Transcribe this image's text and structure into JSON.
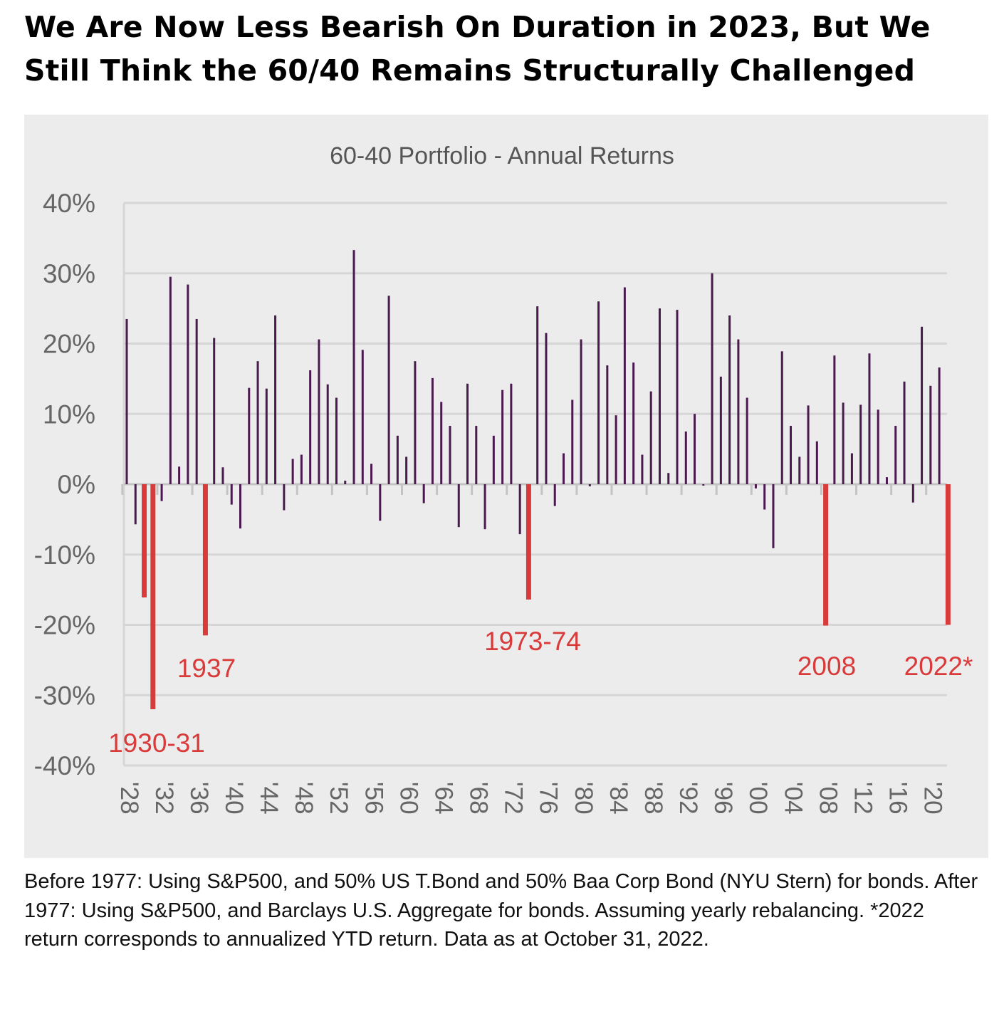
{
  "headline": "We Are Now Less Bearish On Duration in 2023, But We Still Think the 60/40 Remains Structurally Challenged",
  "footnote": "Before 1977: Using S&P500, and 50% US T.Bond and 50% Baa Corp Bond (NYU Stern) for bonds. After 1977: Using S&P500, and Barclays U.S. Aggregate for bonds. Assuming yearly rebalancing. *2022 return corresponds to annualized YTD return. Data as at October 31, 2022.",
  "colors": {
    "bar": "#4a1a4f",
    "highlight": "#d93a3a",
    "panel": "#ececec",
    "grid": "#d6d6d6",
    "tick_text": "#666666"
  },
  "chart_data": {
    "type": "bar",
    "title": "60-40 Portfolio - Annual Returns",
    "xlabel": "",
    "ylabel": "",
    "ylim": [
      -40,
      40
    ],
    "y_ticks": [
      40,
      30,
      20,
      10,
      0,
      -10,
      -20,
      -30,
      -40
    ],
    "y_tick_labels": [
      "40%",
      "30%",
      "20%",
      "10%",
      "0%",
      "-10%",
      "-20%",
      "-30%",
      "-40%"
    ],
    "x_tick_years": [
      1928,
      1932,
      1936,
      1940,
      1944,
      1948,
      1952,
      1956,
      1960,
      1964,
      1968,
      1972,
      1976,
      1980,
      1984,
      1988,
      1992,
      1996,
      2000,
      2004,
      2008,
      2012,
      2016,
      2020
    ],
    "x_tick_labels": [
      "'28",
      "'32",
      "'36",
      "'40",
      "'44",
      "'48",
      "'52",
      "'56",
      "'60",
      "'64",
      "'68",
      "'72",
      "'76",
      "'80",
      "'84",
      "'88",
      "'92",
      "'96",
      "'00",
      "'04",
      "'08",
      "'12",
      "'16",
      "'20"
    ],
    "grid": true,
    "legend": "none",
    "years": [
      1928,
      1929,
      1930,
      1931,
      1932,
      1933,
      1934,
      1935,
      1936,
      1937,
      1938,
      1939,
      1940,
      1941,
      1942,
      1943,
      1944,
      1945,
      1946,
      1947,
      1948,
      1949,
      1950,
      1951,
      1952,
      1953,
      1954,
      1955,
      1956,
      1957,
      1958,
      1959,
      1960,
      1961,
      1962,
      1963,
      1964,
      1965,
      1966,
      1967,
      1968,
      1969,
      1970,
      1971,
      1972,
      1973,
      1974,
      1975,
      1976,
      1977,
      1978,
      1979,
      1980,
      1981,
      1982,
      1983,
      1984,
      1985,
      1986,
      1987,
      1988,
      1989,
      1990,
      1991,
      1992,
      1993,
      1994,
      1995,
      1996,
      1997,
      1998,
      1999,
      2000,
      2001,
      2002,
      2003,
      2004,
      2005,
      2006,
      2007,
      2008,
      2009,
      2010,
      2011,
      2012,
      2013,
      2014,
      2015,
      2016,
      2017,
      2018,
      2019,
      2020,
      2021,
      2022
    ],
    "values": [
      23.5,
      -5.7,
      -16.1,
      -32.0,
      -2.4,
      29.5,
      2.5,
      28.4,
      23.5,
      -21.5,
      20.8,
      2.4,
      -2.9,
      -6.3,
      13.7,
      17.5,
      13.6,
      24.0,
      -3.7,
      3.6,
      4.2,
      16.2,
      20.6,
      14.2,
      12.3,
      0.5,
      33.3,
      19.1,
      2.9,
      -5.2,
      26.8,
      6.9,
      3.9,
      17.5,
      -2.7,
      15.1,
      11.7,
      8.3,
      -6.1,
      14.3,
      8.3,
      -6.4,
      6.9,
      13.4,
      14.3,
      -7.1,
      -16.4,
      25.3,
      21.5,
      -3.1,
      4.4,
      12.0,
      20.6,
      -0.3,
      26.0,
      16.9,
      9.8,
      28.0,
      17.3,
      4.2,
      13.2,
      25.0,
      1.6,
      24.8,
      7.5,
      10.0,
      -0.2,
      30.0,
      15.3,
      24.0,
      20.6,
      12.3,
      -0.6,
      -3.6,
      -9.1,
      18.9,
      8.3,
      3.9,
      11.2,
      6.1,
      -20.1,
      18.3,
      11.6,
      4.4,
      11.3,
      18.6,
      10.6,
      1.0,
      8.3,
      14.6,
      -2.6,
      22.4,
      14.0,
      16.6,
      -20.0
    ],
    "highlight_years": [
      1930,
      1931,
      1937,
      1974,
      2008,
      2022
    ],
    "annotations": [
      "1930-31",
      "1937",
      "1973-74",
      "2008",
      "2022*"
    ]
  }
}
